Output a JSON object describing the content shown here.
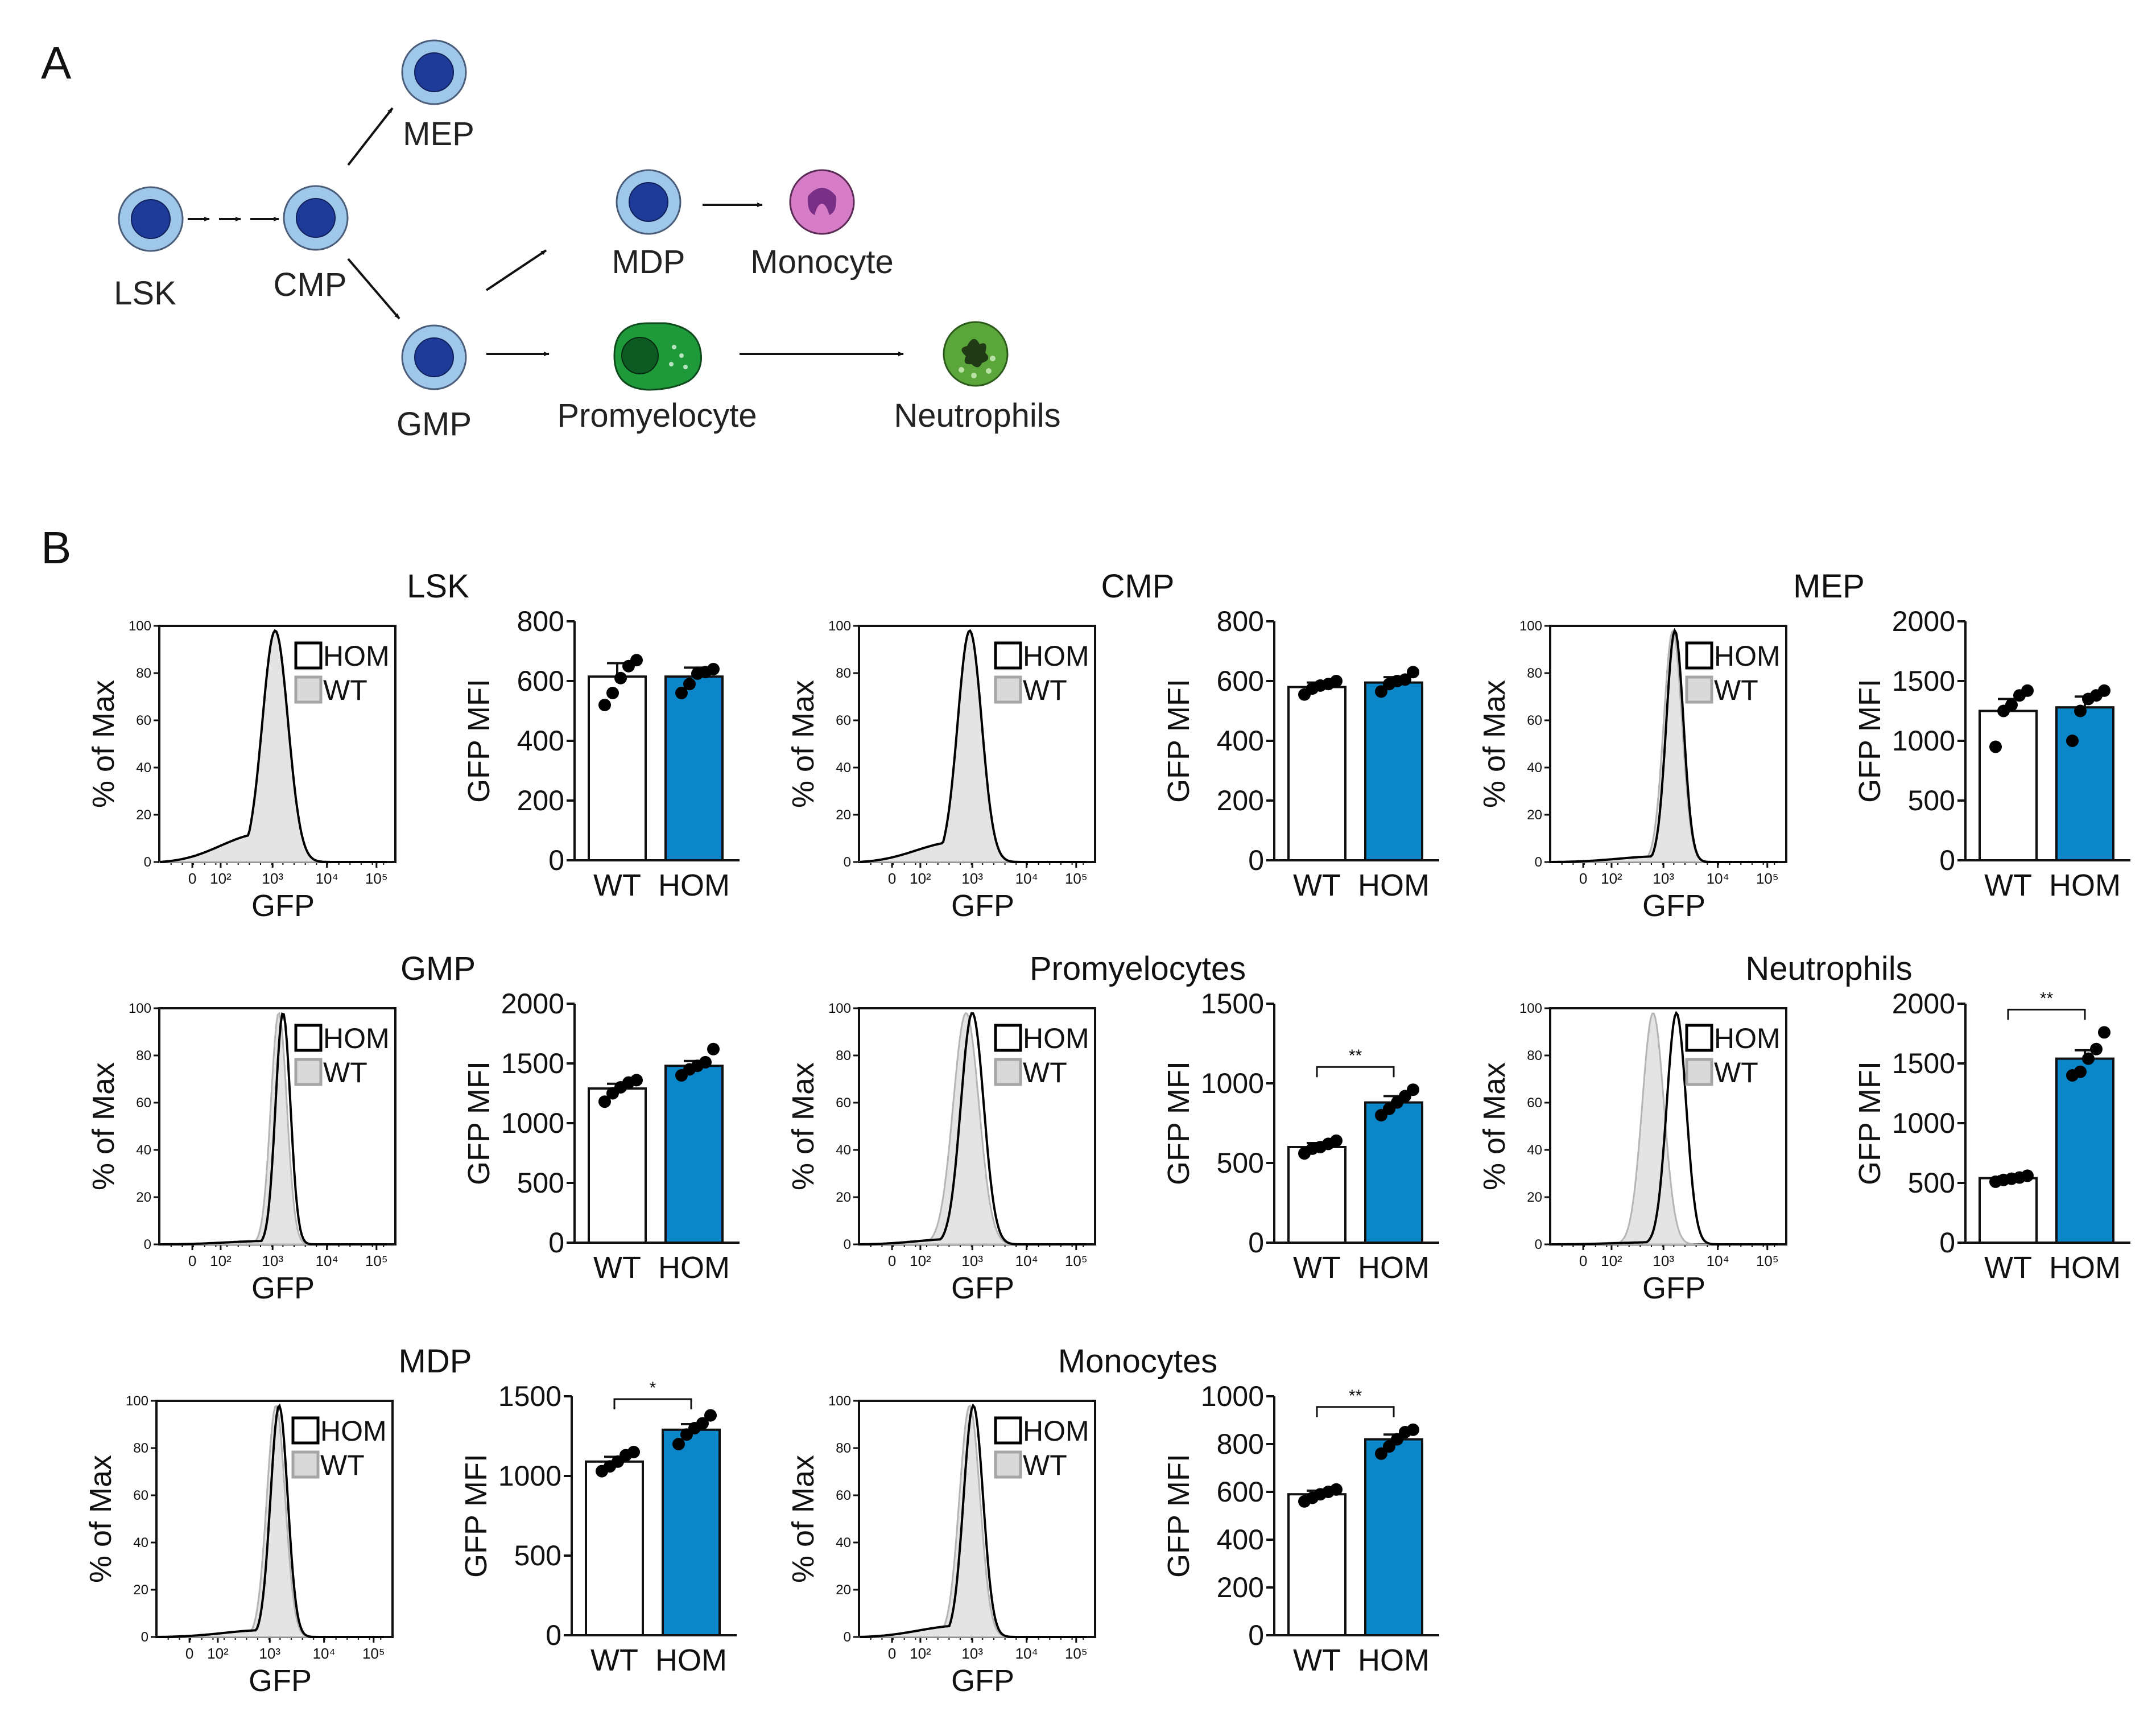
{
  "panel_labels": {
    "a": "A",
    "b": "B"
  },
  "cells": [
    {
      "id": "lsk",
      "label": "LSK",
      "kind": "progenitor"
    },
    {
      "id": "cmp",
      "label": "CMP",
      "kind": "progenitor"
    },
    {
      "id": "mep",
      "label": "MEP",
      "kind": "progenitor"
    },
    {
      "id": "gmp",
      "label": "GMP",
      "kind": "progenitor"
    },
    {
      "id": "mdp",
      "label": "MDP",
      "kind": "progenitor"
    },
    {
      "id": "monocyte",
      "label": "Monocyte",
      "kind": "monocyte"
    },
    {
      "id": "promyelocyte",
      "label": "Promyelocyte",
      "kind": "promyelocyte"
    },
    {
      "id": "neutrophils",
      "label": "Neutrophils",
      "kind": "neutrophil"
    }
  ],
  "colors": {
    "wt_bar": "#ffffff",
    "hom_bar": "#0b87c9",
    "cell_outer": "#9fc7ea",
    "cell_nucleus": "#1f3b9a",
    "monocyte_outer": "#d77cc6",
    "monocyte_nucleus": "#7a2f86",
    "promyelocyte": "#1f9a3a",
    "neutrophil": "#5aa63a",
    "wt_hist": "#b5b5b5",
    "hom_hist": "#000000"
  },
  "histogram_common": {
    "ylabel": "% of Max",
    "xlabel": "GFP",
    "yticks": [
      "0",
      "20",
      "40",
      "60",
      "80",
      "100"
    ],
    "xticks": [
      "0",
      "10²",
      "10³",
      "10⁴",
      "10⁵"
    ],
    "legend": [
      "HOM",
      "WT"
    ]
  },
  "chart_data": [
    {
      "type": "bar",
      "title": "LSK",
      "ylabel": "GFP MFI",
      "categories": [
        "WT",
        "HOM"
      ],
      "ylim": [
        0,
        800
      ],
      "yticks": [
        "0",
        "200",
        "400",
        "600",
        "800"
      ],
      "series": [
        {
          "name": "WT",
          "mean": 615,
          "sem": 45,
          "points": [
            520,
            560,
            610,
            650,
            670
          ]
        },
        {
          "name": "HOM",
          "mean": 615,
          "sem": 30,
          "points": [
            560,
            590,
            625,
            630,
            640
          ]
        }
      ],
      "significance": "",
      "histogram": {
        "wt_peak": 1.05,
        "hom_peak": 1.05,
        "wt_width": 0.45,
        "hom_width": 0.45,
        "tail": 0.25
      }
    },
    {
      "type": "bar",
      "title": "CMP",
      "ylabel": "GFP MFI",
      "categories": [
        "WT",
        "HOM"
      ],
      "ylim": [
        0,
        800
      ],
      "yticks": [
        "0",
        "200",
        "400",
        "600",
        "800"
      ],
      "series": [
        {
          "name": "WT",
          "mean": 580,
          "sem": 15,
          "points": [
            555,
            575,
            585,
            590,
            600
          ]
        },
        {
          "name": "HOM",
          "mean": 595,
          "sem": 18,
          "points": [
            565,
            590,
            600,
            605,
            630
          ]
        }
      ],
      "significance": "",
      "histogram": {
        "wt_peak": 0.95,
        "hom_peak": 0.95,
        "wt_width": 0.42,
        "hom_width": 0.42,
        "tail": 0.18
      }
    },
    {
      "type": "bar",
      "title": "MEP",
      "ylabel": "GFP MFI",
      "categories": [
        "WT",
        "HOM"
      ],
      "ylim": [
        0,
        2000
      ],
      "yticks": [
        "0",
        "500",
        "1000",
        "1500",
        "2000"
      ],
      "series": [
        {
          "name": "WT",
          "mean": 1250,
          "sem": 100,
          "points": [
            950,
            1250,
            1300,
            1380,
            1420
          ]
        },
        {
          "name": "HOM",
          "mean": 1280,
          "sem": 90,
          "points": [
            1000,
            1250,
            1350,
            1380,
            1420
          ]
        }
      ],
      "significance": "",
      "histogram": {
        "wt_peak": 1.18,
        "hom_peak": 1.22,
        "wt_width": 0.32,
        "hom_width": 0.3,
        "tail": 0.05
      }
    },
    {
      "type": "bar",
      "title": "GMP",
      "ylabel": "GFP MFI",
      "categories": [
        "WT",
        "HOM"
      ],
      "ylim": [
        0,
        2000
      ],
      "yticks": [
        "0",
        "500",
        "1000",
        "1500",
        "2000"
      ],
      "series": [
        {
          "name": "WT",
          "mean": 1290,
          "sem": 40,
          "points": [
            1180,
            1250,
            1300,
            1340,
            1360
          ]
        },
        {
          "name": "HOM",
          "mean": 1480,
          "sem": 40,
          "points": [
            1400,
            1450,
            1480,
            1510,
            1620
          ]
        }
      ],
      "significance": "",
      "histogram": {
        "wt_peak": 1.12,
        "hom_peak": 1.2,
        "wt_width": 0.28,
        "hom_width": 0.26,
        "tail": 0.03
      }
    },
    {
      "type": "bar",
      "title": "Promyelocytes",
      "ylabel": "GFP MFI",
      "categories": [
        "WT",
        "HOM"
      ],
      "ylim": [
        0,
        1500
      ],
      "yticks": [
        "0",
        "500",
        "1000",
        "1500"
      ],
      "series": [
        {
          "name": "WT",
          "mean": 600,
          "sem": 25,
          "points": [
            560,
            590,
            600,
            620,
            640
          ]
        },
        {
          "name": "HOM",
          "mean": 880,
          "sem": 40,
          "points": [
            800,
            840,
            880,
            920,
            960
          ]
        }
      ],
      "significance": "**",
      "histogram": {
        "wt_peak": 0.88,
        "hom_peak": 1.0,
        "wt_width": 0.45,
        "hom_width": 0.4,
        "tail": 0.05
      }
    },
    {
      "type": "bar",
      "title": "Neutrophils",
      "ylabel": "GFP MFI",
      "categories": [
        "WT",
        "HOM"
      ],
      "ylim": [
        0,
        2000
      ],
      "yticks": [
        "0",
        "500",
        "1000",
        "1500",
        "2000"
      ],
      "series": [
        {
          "name": "WT",
          "mean": 540,
          "sem": 15,
          "points": [
            510,
            525,
            535,
            545,
            560
          ]
        },
        {
          "name": "HOM",
          "mean": 1540,
          "sem": 70,
          "points": [
            1400,
            1430,
            1540,
            1620,
            1760
          ]
        }
      ],
      "significance": "**",
      "histogram": {
        "wt_peak": 0.8,
        "hom_peak": 1.25,
        "wt_width": 0.38,
        "hom_width": 0.34,
        "tail": 0.02
      }
    },
    {
      "type": "bar",
      "title": "MDP",
      "ylabel": "GFP MFI",
      "categories": [
        "WT",
        "HOM"
      ],
      "ylim": [
        0,
        1500
      ],
      "yticks": [
        "0",
        "500",
        "1000",
        "1500"
      ],
      "series": [
        {
          "name": "WT",
          "mean": 1090,
          "sem": 30,
          "points": [
            1030,
            1060,
            1090,
            1130,
            1150
          ]
        },
        {
          "name": "HOM",
          "mean": 1290,
          "sem": 35,
          "points": [
            1200,
            1260,
            1300,
            1330,
            1380
          ]
        }
      ],
      "significance": "*",
      "histogram": {
        "wt_peak": 1.12,
        "hom_peak": 1.18,
        "wt_width": 0.32,
        "hom_width": 0.3,
        "tail": 0.06
      }
    },
    {
      "type": "bar",
      "title": "Monocytes",
      "ylabel": "GFP MFI",
      "categories": [
        "WT",
        "HOM"
      ],
      "ylim": [
        0,
        1000
      ],
      "yticks": [
        "0",
        "200",
        "400",
        "600",
        "800",
        "1000"
      ],
      "series": [
        {
          "name": "WT",
          "mean": 590,
          "sem": 15,
          "points": [
            560,
            575,
            590,
            600,
            610
          ]
        },
        {
          "name": "HOM",
          "mean": 820,
          "sem": 20,
          "points": [
            760,
            790,
            820,
            850,
            860
          ]
        }
      ],
      "significance": "**",
      "histogram": {
        "wt_peak": 0.95,
        "hom_peak": 1.02,
        "wt_width": 0.36,
        "hom_width": 0.34,
        "tail": 0.1
      }
    }
  ]
}
